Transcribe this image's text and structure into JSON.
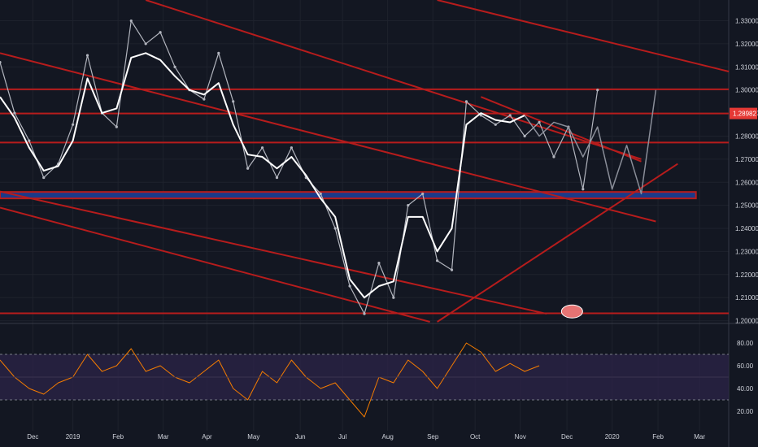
{
  "chart_data": [
    {
      "type": "line",
      "title": "",
      "instrument_note": "candlestick price chart",
      "ylim": [
        1.1995,
        1.339
      ],
      "xlim": [
        0,
        100
      ],
      "y_ticks": [
        "1.20000",
        "1.21000",
        "1.22000",
        "1.23000",
        "1.24000",
        "1.25000",
        "1.26000",
        "1.27000",
        "1.28000",
        "1.29000",
        "1.30000",
        "1.31000",
        "1.32000",
        "1.33000"
      ],
      "current_price": {
        "label": "1.28982",
        "value": 1.28982,
        "color": "#e53935"
      },
      "series": [
        {
          "name": "",
          "kind": "price",
          "color": "#b2b5be",
          "x": [
            0,
            2,
            4,
            6,
            8,
            10,
            12,
            14,
            16,
            18,
            20,
            22,
            24,
            26,
            28,
            30,
            32,
            34,
            36,
            38,
            40,
            42,
            44,
            46,
            48,
            50,
            52,
            54,
            56,
            58,
            60,
            62,
            64,
            66,
            68,
            70,
            72,
            74,
            76,
            78,
            80,
            82
          ],
          "y": [
            1.312,
            1.29,
            1.278,
            1.262,
            1.268,
            1.285,
            1.315,
            1.29,
            1.284,
            1.33,
            1.32,
            1.325,
            1.31,
            1.3,
            1.296,
            1.316,
            1.295,
            1.266,
            1.275,
            1.262,
            1.275,
            1.262,
            1.255,
            1.24,
            1.215,
            1.203,
            1.225,
            1.21,
            1.25,
            1.255,
            1.226,
            1.222,
            1.295,
            1.289,
            1.285,
            1.289,
            1.28,
            1.286,
            1.271,
            1.284,
            1.257,
            1.3
          ]
        },
        {
          "name": "",
          "kind": "moving-average",
          "color": "#ffffff",
          "x": [
            0,
            2,
            4,
            6,
            8,
            10,
            12,
            14,
            16,
            18,
            20,
            22,
            24,
            26,
            28,
            30,
            32,
            34,
            36,
            38,
            40,
            42,
            44,
            46,
            48,
            50,
            52,
            54,
            56,
            58,
            60,
            62,
            64,
            66,
            68,
            70,
            72
          ],
          "y": [
            1.297,
            1.288,
            1.275,
            1.265,
            1.267,
            1.278,
            1.305,
            1.29,
            1.292,
            1.314,
            1.316,
            1.313,
            1.306,
            1.3,
            1.298,
            1.303,
            1.285,
            1.272,
            1.271,
            1.266,
            1.271,
            1.263,
            1.253,
            1.245,
            1.218,
            1.21,
            1.215,
            1.217,
            1.245,
            1.245,
            1.23,
            1.24,
            1.285,
            1.29,
            1.287,
            1.286,
            1.289
          ]
        }
      ],
      "projection": {
        "color": "#8a8e99",
        "x": [
          72,
          74,
          76,
          78,
          80,
          82,
          84,
          86,
          88,
          90
        ],
        "y": [
          1.289,
          1.28,
          1.286,
          1.284,
          1.271,
          1.284,
          1.257,
          1.276,
          1.255,
          1.3
        ]
      },
      "horizontal_lines": [
        {
          "y": 1.3003,
          "color": "#b71c1c"
        },
        {
          "y": 1.2898,
          "color": "#b71c1c"
        },
        {
          "y": 1.2772,
          "color": "#b71c1c"
        },
        {
          "y": 1.2032,
          "color": "#b71c1c"
        }
      ],
      "support_zone": {
        "y_from": 1.253,
        "y_to": 1.2558,
        "color": "#1a3a8a"
      },
      "trend_lines": [
        {
          "x1": 0,
          "y1": 1.316,
          "x2": 90,
          "y2": 1.243,
          "color": "#b71c1c"
        },
        {
          "x1": 20,
          "y1": 1.339,
          "x2": 88,
          "y2": 1.27,
          "color": "#b71c1c"
        },
        {
          "x1": 60,
          "y1": 1.339,
          "x2": 100,
          "y2": 1.308,
          "color": "#b71c1c"
        },
        {
          "x1": 60,
          "y1": 1.1995,
          "x2": 93,
          "y2": 1.268,
          "color": "#b71c1c"
        },
        {
          "x1": 66,
          "y1": 1.297,
          "x2": 88,
          "y2": 1.269,
          "color": "#b71c1c"
        },
        {
          "x1": 0,
          "y1": 1.249,
          "x2": 59,
          "y2": 1.1995,
          "color": "#b71c1c"
        },
        {
          "x1": 0,
          "y1": 1.256,
          "x2": 75,
          "y2": 1.203,
          "color": "#b71c1c"
        }
      ]
    },
    {
      "type": "line",
      "title": "",
      "instrument_note": "oscillator sub-panel",
      "ylim": [
        10,
        90
      ],
      "xlim": [
        0,
        100
      ],
      "y_ticks": [
        "20.00",
        "40.00",
        "60.00",
        "80.00"
      ],
      "band": {
        "upper": 70,
        "lower": 30,
        "color": "#2a2346"
      },
      "midline": 50,
      "series": [
        {
          "name": "",
          "color": "#f57c00",
          "x": [
            0,
            2,
            4,
            6,
            8,
            10,
            12,
            14,
            16,
            18,
            20,
            22,
            24,
            26,
            28,
            30,
            32,
            34,
            36,
            38,
            40,
            42,
            44,
            46,
            48,
            50,
            52,
            54,
            56,
            58,
            60,
            62,
            64,
            66,
            68,
            70,
            72,
            74
          ],
          "y": [
            65,
            50,
            40,
            35,
            45,
            50,
            70,
            55,
            60,
            75,
            55,
            60,
            50,
            45,
            55,
            65,
            40,
            30,
            55,
            45,
            65,
            50,
            40,
            45,
            30,
            15,
            50,
            45,
            65,
            55,
            40,
            60,
            80,
            72,
            55,
            62,
            55,
            60
          ]
        }
      ]
    }
  ],
  "x_axis_labels": [
    "Dec",
    "2019",
    "Feb",
    "Mar",
    "Apr",
    "May",
    "Jun",
    "Jul",
    "Aug",
    "Sep",
    "Oct",
    "Nov",
    "Dec",
    "2020",
    "Feb",
    "Mar"
  ],
  "x_axis_positions": [
    4.5,
    10,
    16.2,
    22.4,
    28.4,
    34.8,
    41.2,
    47,
    53.2,
    59.4,
    65.2,
    71.4,
    77.8,
    84,
    90.3,
    96
  ],
  "current_price_label": "1.28982",
  "colors": {
    "background": "#131722",
    "grid": "#1e222d",
    "text": "#d1d4dc",
    "sr_lines": "#b71c1c",
    "support_zone": "#1a3a8a",
    "osc_line": "#f57c00",
    "osc_band": "#2a2346",
    "ma_line": "#ffffff",
    "price": "#b2b5be"
  }
}
